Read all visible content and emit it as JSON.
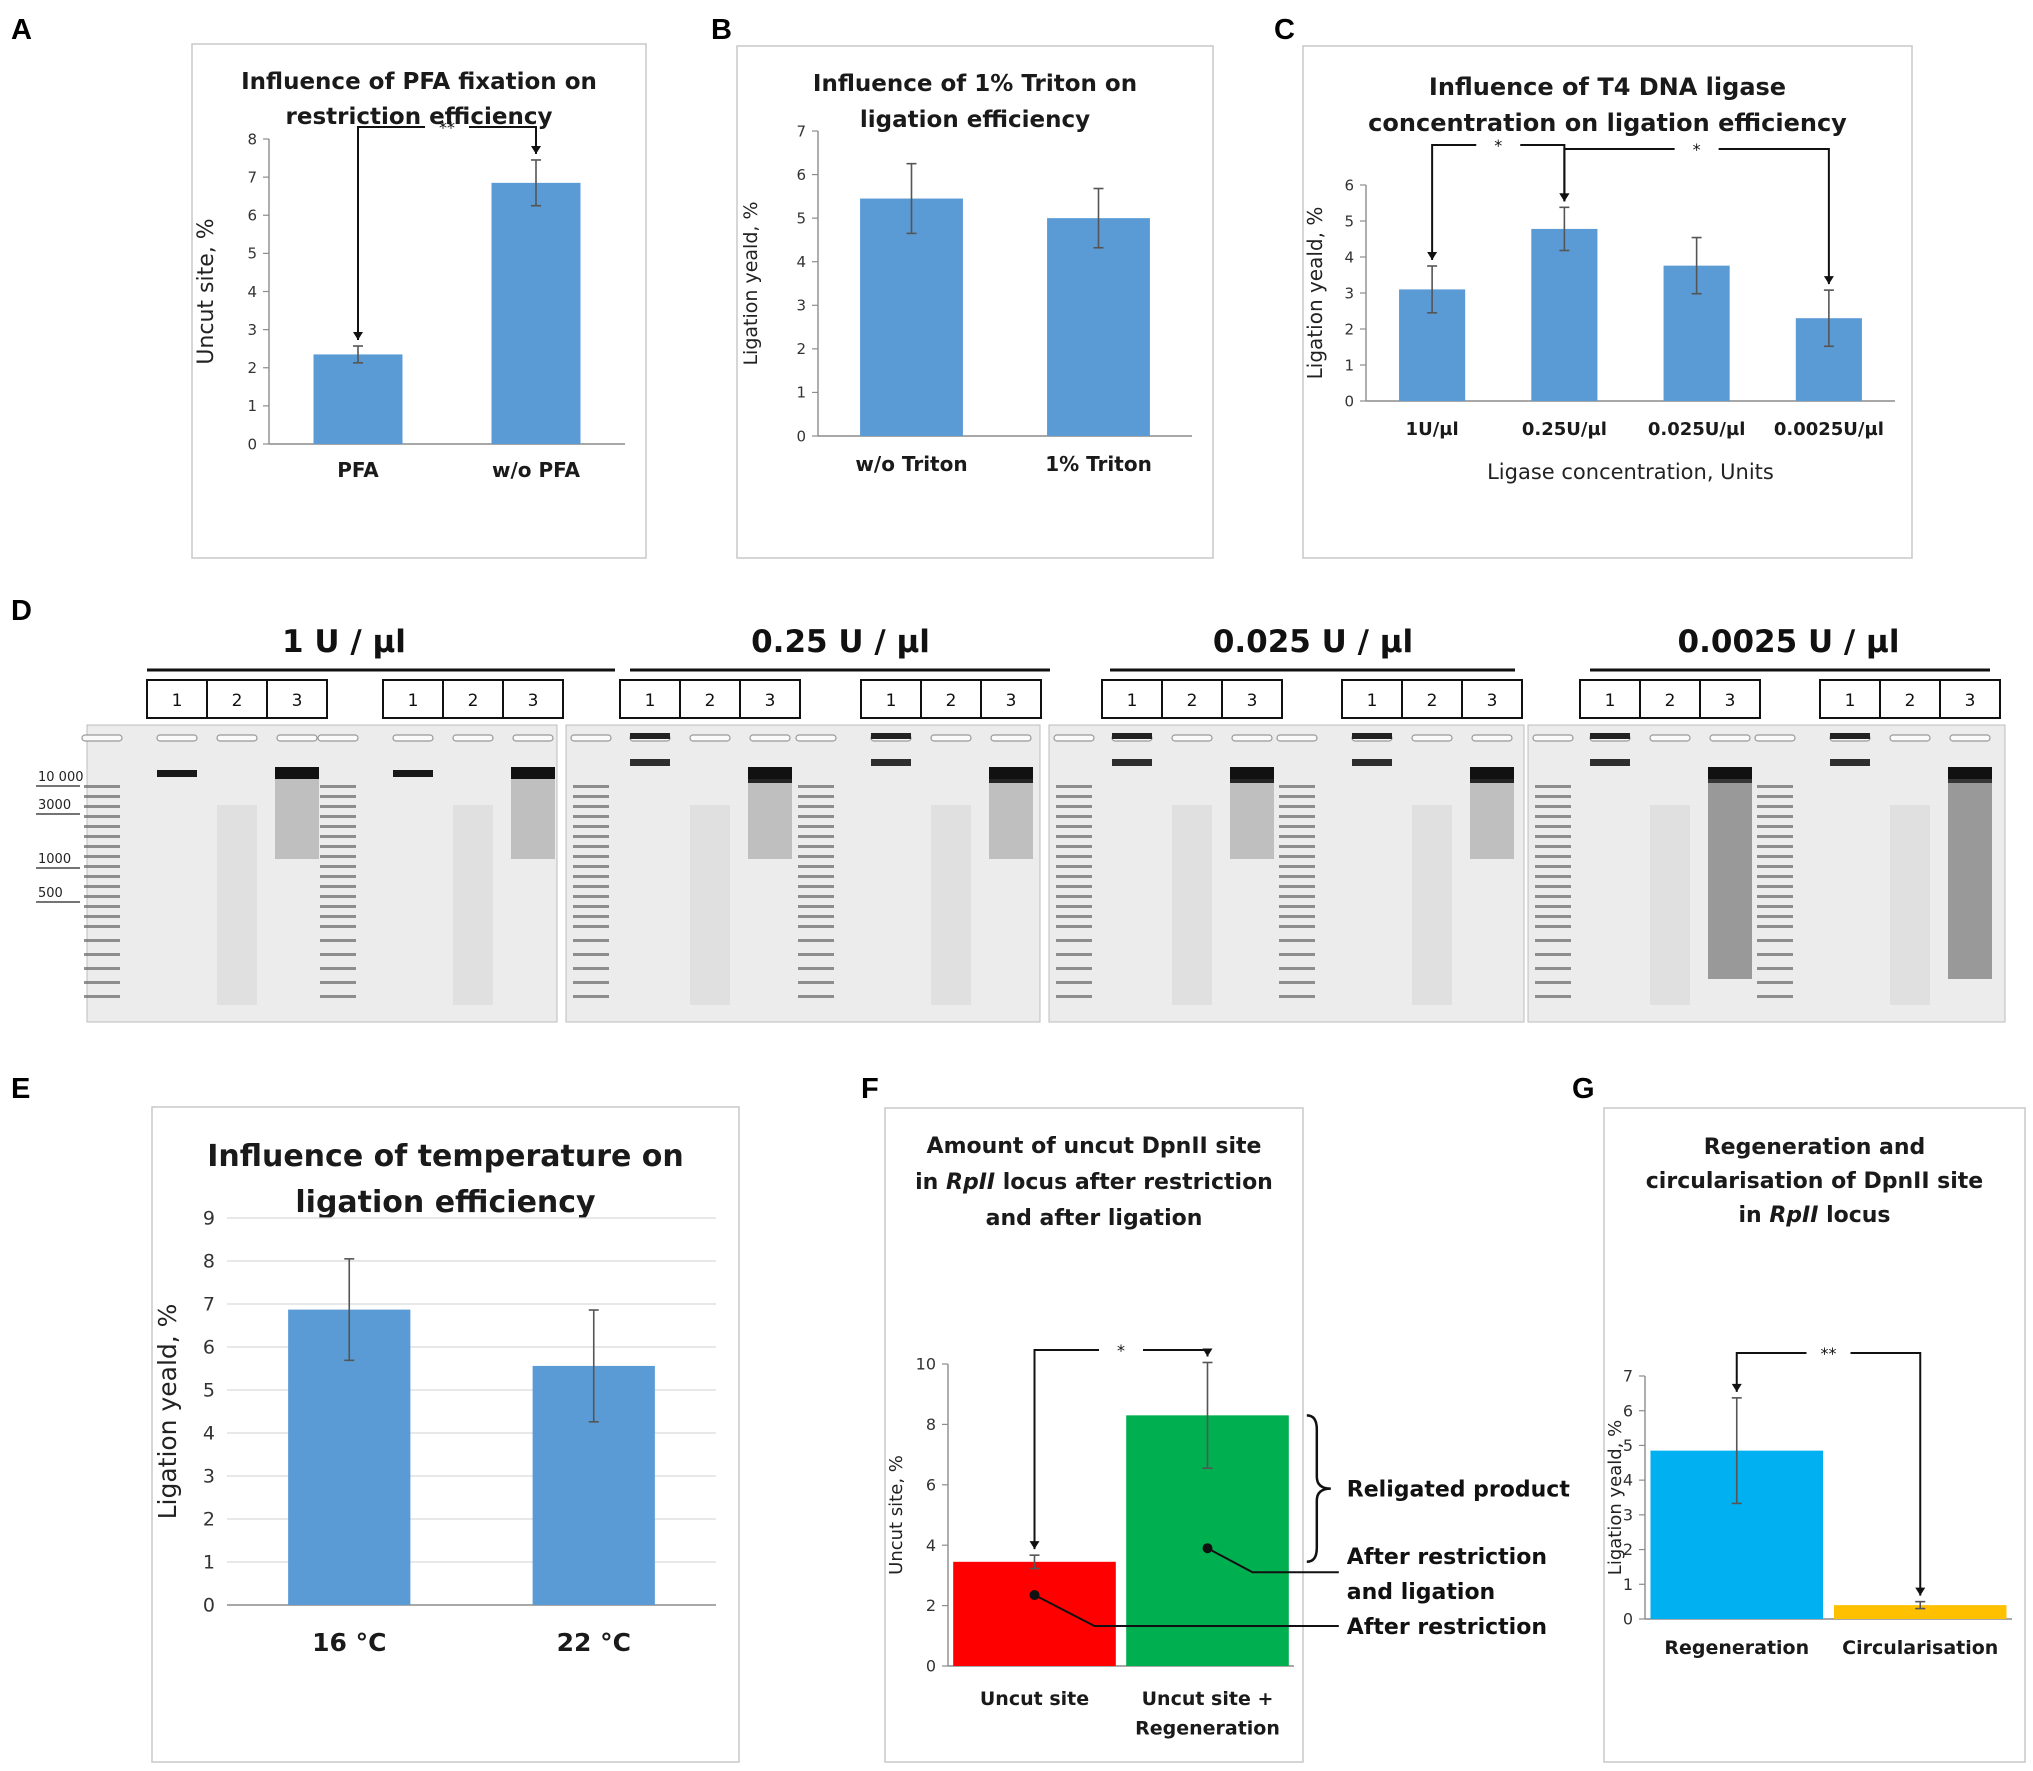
{
  "panels": {
    "letters": [
      "A",
      "B",
      "C",
      "D",
      "E",
      "F",
      "G"
    ]
  },
  "colors": {
    "bar_blue": "#5b9bd5",
    "bar_red": "#ff0000",
    "bar_green": "#00b050",
    "bar_cyan": "#00b0f0",
    "bar_yellow": "#ffc000",
    "gel_bg": "#ececec"
  },
  "chart_data": [
    {
      "id": "A",
      "type": "bar",
      "title": [
        "Influence of PFA fixation on",
        "restriction efficiency"
      ],
      "xlabel": "",
      "ylabel": "Uncut site, %",
      "categories": [
        "PFA",
        "w/o PFA"
      ],
      "values": [
        2.35,
        6.85
      ],
      "errors": [
        0.22,
        0.6
      ],
      "ylim": [
        0,
        8
      ],
      "yticks": [
        0,
        1,
        2,
        3,
        4,
        5,
        6,
        7,
        8
      ],
      "grid": false,
      "bar_colors": [
        "#5b9bd5",
        "#5b9bd5"
      ],
      "significance": [
        {
          "from": 0,
          "to": 1,
          "label": "**"
        }
      ]
    },
    {
      "id": "B",
      "type": "bar",
      "title": [
        "Influence of 1% Triton on",
        "ligation efficiency"
      ],
      "xlabel": "",
      "ylabel": "Ligation yeald, %",
      "categories": [
        "w/o Triton",
        "1% Triton"
      ],
      "values": [
        5.45,
        5.0
      ],
      "errors": [
        0.8,
        0.68
      ],
      "ylim": [
        0,
        7
      ],
      "yticks": [
        0,
        1,
        2,
        3,
        4,
        5,
        6,
        7
      ],
      "grid": false,
      "bar_colors": [
        "#5b9bd5",
        "#5b9bd5"
      ],
      "significance": []
    },
    {
      "id": "C",
      "type": "bar",
      "title": [
        "Influence of T4 DNA ligase",
        "concentration on ligation efficiency"
      ],
      "xlabel": "Ligase concentration, Units",
      "ylabel": "Ligation yeald, %",
      "categories": [
        "1U/µl",
        "0.25U/µl",
        "0.025U/µl",
        "0.0025U/µl"
      ],
      "values": [
        3.1,
        4.78,
        3.76,
        2.3
      ],
      "errors": [
        0.65,
        0.6,
        0.78,
        0.78
      ],
      "ylim": [
        0,
        6
      ],
      "yticks": [
        0,
        1,
        2,
        3,
        4,
        5,
        6
      ],
      "grid": false,
      "bar_colors": [
        "#5b9bd5",
        "#5b9bd5",
        "#5b9bd5",
        "#5b9bd5"
      ],
      "significance": [
        {
          "from": 0,
          "to": 1,
          "label": "*"
        },
        {
          "from": 1,
          "to": 3,
          "label": "*"
        }
      ]
    },
    {
      "id": "E",
      "type": "bar",
      "title": [
        "Influence of temperature on",
        "ligation efficiency"
      ],
      "xlabel": "",
      "ylabel": "Ligation yeald, %",
      "categories": [
        "16 °C",
        "22 °C"
      ],
      "values": [
        6.87,
        5.56
      ],
      "errors": [
        1.18,
        1.3
      ],
      "ylim": [
        0,
        9
      ],
      "yticks": [
        0,
        1,
        2,
        3,
        4,
        5,
        6,
        7,
        8,
        9
      ],
      "grid": true,
      "bar_colors": [
        "#5b9bd5",
        "#5b9bd5"
      ],
      "significance": []
    },
    {
      "id": "F",
      "type": "bar",
      "title": [
        "Amount of uncut DpnII site",
        "in RpII locus after restriction",
        "and after ligation"
      ],
      "xlabel": "",
      "ylabel": "Uncut site, %",
      "categories": [
        [
          "Uncut site"
        ],
        [
          "Uncut site +",
          "Regeneration"
        ]
      ],
      "values": [
        3.45,
        8.3
      ],
      "errors": [
        0.22,
        1.75
      ],
      "ylim": [
        0,
        10
      ],
      "yticks": [
        0,
        2,
        4,
        6,
        8,
        10
      ],
      "grid": false,
      "bar_colors": [
        "#ff0000",
        "#00b050"
      ],
      "significance": [
        {
          "from": 0,
          "to": 1,
          "label": "*"
        }
      ],
      "annotations": [
        "Religated product",
        "After restriction",
        "and ligation",
        "After restriction"
      ]
    },
    {
      "id": "G",
      "type": "bar",
      "title": [
        "Regeneration and",
        "circularisation of DpnII site",
        "in RpII locus"
      ],
      "xlabel": "",
      "ylabel": "Ligation yeald, %",
      "categories": [
        "Regeneration",
        "Circularisation"
      ],
      "values": [
        4.85,
        0.4
      ],
      "errors": [
        1.52,
        0.1
      ],
      "ylim": [
        0,
        7
      ],
      "yticks": [
        0,
        1,
        2,
        3,
        4,
        5,
        6,
        7
      ],
      "grid": false,
      "bar_colors": [
        "#00b0f0",
        "#ffc000"
      ],
      "significance": [
        {
          "from": 0,
          "to": 1,
          "label": "**"
        }
      ]
    }
  ],
  "gel": {
    "ladder_labels": [
      "10 000",
      "3000",
      "1000",
      "500"
    ],
    "lane_numbers": [
      "1",
      "2",
      "3"
    ],
    "sections": [
      {
        "heading": "1 U / µl"
      },
      {
        "heading": "0.25 U / µl"
      },
      {
        "heading": "0.025 U / µl"
      },
      {
        "heading": "0.0025 U / µl"
      }
    ]
  }
}
